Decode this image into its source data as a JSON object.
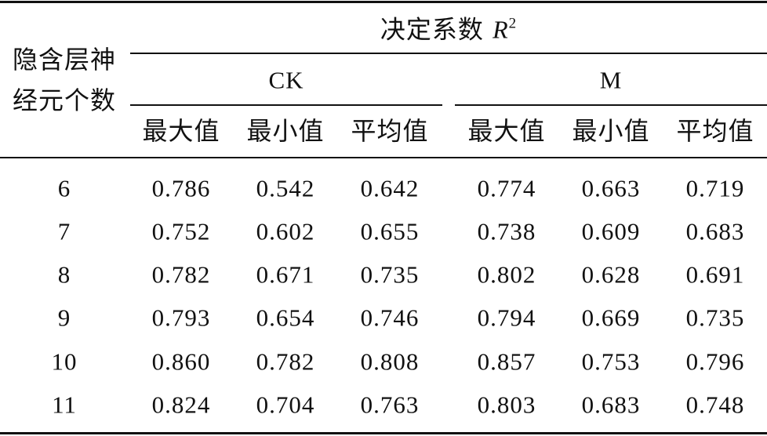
{
  "table": {
    "row_header": {
      "line1": "隐含层神",
      "line2": "经元个数"
    },
    "group_header": {
      "label": "决定系数",
      "symbol": "R",
      "superscript": "2"
    },
    "groups": [
      {
        "name": "CK",
        "columns": [
          "最大值",
          "最小值",
          "平均值"
        ]
      },
      {
        "name": "M",
        "columns": [
          "最大值",
          "最小值",
          "平均值"
        ]
      }
    ],
    "rows": [
      {
        "neurons": "6",
        "values": [
          "0.786",
          "0.542",
          "0.642",
          "0.774",
          "0.663",
          "0.719"
        ]
      },
      {
        "neurons": "7",
        "values": [
          "0.752",
          "0.602",
          "0.655",
          "0.738",
          "0.609",
          "0.683"
        ]
      },
      {
        "neurons": "8",
        "values": [
          "0.782",
          "0.671",
          "0.735",
          "0.802",
          "0.628",
          "0.691"
        ]
      },
      {
        "neurons": "9",
        "values": [
          "0.793",
          "0.654",
          "0.746",
          "0.794",
          "0.669",
          "0.735"
        ]
      },
      {
        "neurons": "10",
        "values": [
          "0.860",
          "0.782",
          "0.808",
          "0.857",
          "0.753",
          "0.796"
        ]
      },
      {
        "neurons": "11",
        "values": [
          "0.824",
          "0.704",
          "0.763",
          "0.803",
          "0.683",
          "0.748"
        ]
      }
    ]
  }
}
